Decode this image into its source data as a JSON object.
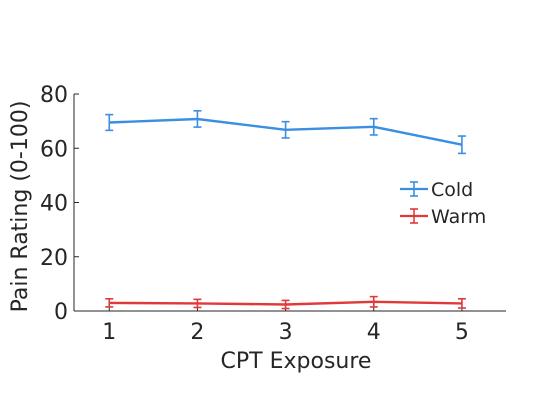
{
  "chart_data": {
    "type": "line",
    "xlabel": "CPT Exposure",
    "ylabel": "Pain Rating (0-100)",
    "x": [
      1,
      2,
      3,
      4,
      5
    ],
    "xlim": [
      0.6,
      5.5
    ],
    "ylim": [
      0,
      80
    ],
    "xticks": [
      1,
      2,
      3,
      4,
      5
    ],
    "yticks": [
      0,
      20,
      40,
      60,
      80
    ],
    "grid": false,
    "legend_position": "right",
    "series": [
      {
        "name": "Cold",
        "color": "#3a8fe0",
        "values": [
          69.5,
          70.8,
          66.8,
          67.9,
          61.3
        ],
        "errors": [
          2.9,
          3.0,
          3.0,
          3.0,
          3.2
        ]
      },
      {
        "name": "Warm",
        "color": "#e0393a",
        "values": [
          3.0,
          2.8,
          2.4,
          3.4,
          2.8
        ],
        "errors": [
          1.5,
          1.5,
          1.5,
          1.9,
          1.7
        ]
      }
    ]
  }
}
